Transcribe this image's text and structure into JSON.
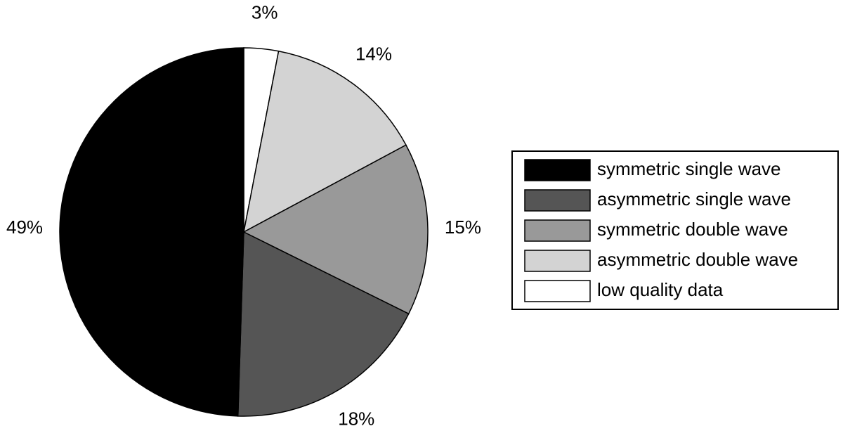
{
  "chart_data": {
    "type": "pie",
    "categories": [
      "symmetric single wave",
      "asymmetric single wave",
      "symmetric double wave",
      "asymmetric double wave",
      "low quality data"
    ],
    "values": [
      49,
      18,
      15,
      14,
      3
    ],
    "value_labels": [
      "49%",
      "18%",
      "15%",
      "14%",
      "3%"
    ],
    "colors": [
      "#000000",
      "#555555",
      "#999999",
      "#d3d3d3",
      "#ffffff"
    ],
    "legend": "right"
  }
}
